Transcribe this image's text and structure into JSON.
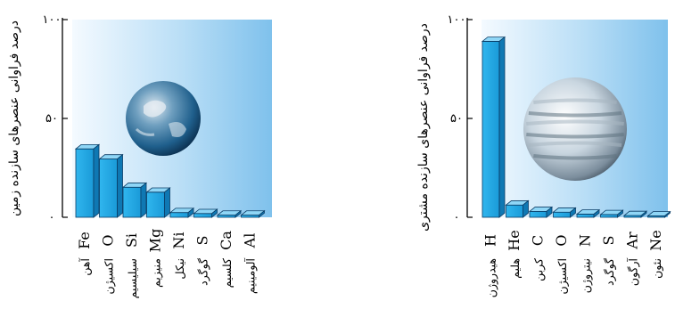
{
  "chart_data": [
    {
      "type": "bar",
      "ylabel": "درصد فراوانی عنصرهای سازنده زمین",
      "yticks": [
        "۰",
        "۵۰",
        "۱۰۰"
      ],
      "ylim": [
        0,
        100
      ],
      "background": "gradient blue (light to dark, left to right)",
      "bar_color": "#1ba6e6",
      "decoration": "earth-globe-image",
      "categories": [
        {
          "symbol": "Fe",
          "name": "آهن"
        },
        {
          "symbol": "O",
          "name": "اکسیژن"
        },
        {
          "symbol": "Si",
          "name": "سیلیسیم"
        },
        {
          "symbol": "Mg",
          "name": "منیزیم"
        },
        {
          "symbol": "Ni",
          "name": "نیکل"
        },
        {
          "symbol": "S",
          "name": "گوگرد"
        },
        {
          "symbol": "Ca",
          "name": "کلسیم"
        },
        {
          "symbol": "Al",
          "name": "آلومینیم"
        }
      ],
      "values": [
        34.6,
        29.5,
        15.2,
        12.7,
        2.4,
        1.9,
        1.1,
        1.1
      ]
    },
    {
      "type": "bar",
      "ylabel": "درصد فراوانی عنصرهای سازنده مشتری",
      "yticks": [
        "۰",
        "۵۰",
        "۱۰۰"
      ],
      "ylim": [
        0,
        100
      ],
      "background": "gradient blue (light to dark, left to right)",
      "bar_color": "#1ba6e6",
      "decoration": "jupiter-planet-image",
      "categories": [
        {
          "symbol": "H",
          "name": "هیدروژن"
        },
        {
          "symbol": "He",
          "name": "هلیم"
        },
        {
          "symbol": "C",
          "name": "کربن"
        },
        {
          "symbol": "O",
          "name": "اکسیژن"
        },
        {
          "symbol": "N",
          "name": "نیتروژن"
        },
        {
          "symbol": "S",
          "name": "گوگرد"
        },
        {
          "symbol": "Ar",
          "name": "آرگون"
        },
        {
          "symbol": "Ne",
          "name": "نئون"
        }
      ],
      "values": [
        89,
        6.2,
        3.0,
        2.6,
        1.6,
        1.4,
        0.9,
        0.7
      ]
    }
  ]
}
